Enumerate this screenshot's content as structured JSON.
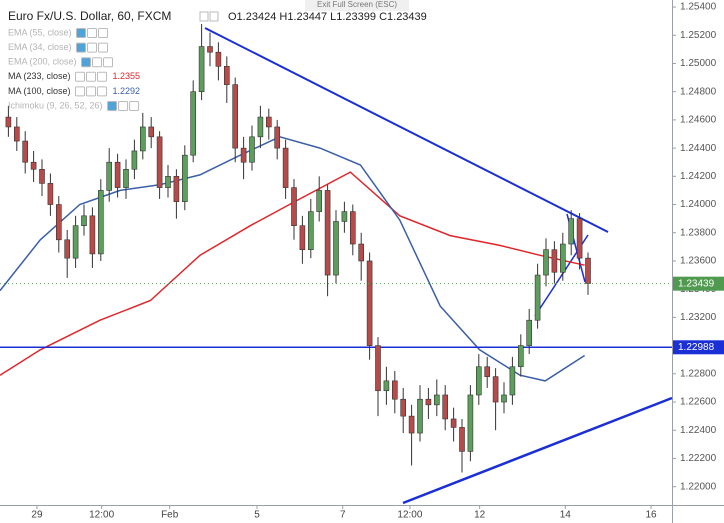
{
  "chart_data": {
    "type": "candlestick",
    "title": "Euro Fx/U.S. Dollar, 60, FXCM",
    "ohlc_text": "O1.23424 H1.23447 L1.23399 C1.23439",
    "exit_label": "Exit Full Screen (ESC)",
    "hidden_indicators": [
      "EMA (55, close)",
      "EMA (34, close)",
      "EMA (200, close)",
      "Ichimoku (9, 26, 52, 26)"
    ],
    "up_color": "#5d9e5d",
    "down_color": "#b84a4a",
    "x": [
      1,
      2,
      3,
      4,
      5,
      6,
      7,
      8,
      9,
      10,
      11,
      12,
      13,
      14,
      15,
      16,
      17,
      18,
      19,
      20,
      21,
      22,
      23,
      24,
      25,
      26,
      27,
      28,
      29,
      30,
      31,
      32,
      33,
      34,
      35,
      36,
      37,
      38,
      39,
      40,
      41,
      42,
      43,
      44,
      45,
      46,
      47,
      48,
      49,
      50,
      51,
      52,
      53,
      54,
      55,
      56,
      57,
      58,
      59,
      60,
      61,
      62,
      63,
      64,
      65,
      66,
      67,
      68,
      69,
      70
    ],
    "open": [
      1.2462,
      1.2455,
      1.2445,
      1.243,
      1.2425,
      1.2415,
      1.24,
      1.2375,
      1.2362,
      1.2385,
      1.2392,
      1.2365,
      1.241,
      1.243,
      1.2412,
      1.2425,
      1.2438,
      1.2455,
      1.2448,
      1.2412,
      1.242,
      1.2402,
      1.2435,
      1.248,
      1.2512,
      1.2508,
      1.2498,
      1.2485,
      1.244,
      1.243,
      1.2448,
      1.2462,
      1.2455,
      1.244,
      1.2412,
      1.2385,
      1.2368,
      1.2395,
      1.241,
      1.235,
      1.2388,
      1.2395,
      1.2372,
      1.236,
      1.23,
      1.2268,
      1.2275,
      1.2262,
      1.225,
      1.2238,
      1.2262,
      1.2258,
      1.2265,
      1.2248,
      1.2242,
      1.2225,
      1.2265,
      1.2285,
      1.2278,
      1.226,
      1.2265,
      1.2285,
      1.23,
      1.2318,
      1.235,
      1.2368,
      1.2352,
      1.2372,
      1.239,
      1.2362
    ],
    "high": [
      1.247,
      1.2462,
      1.2452,
      1.2438,
      1.2432,
      1.2422,
      1.2406,
      1.2382,
      1.2392,
      1.24,
      1.2398,
      1.2418,
      1.244,
      1.2436,
      1.2432,
      1.2446,
      1.2465,
      1.2462,
      1.2452,
      1.2428,
      1.2425,
      1.2442,
      1.2488,
      1.2528,
      1.2522,
      1.2515,
      1.2505,
      1.249,
      1.2448,
      1.2456,
      1.247,
      1.2468,
      1.246,
      1.2446,
      1.2418,
      1.2392,
      1.2404,
      1.242,
      1.2414,
      1.2396,
      1.2402,
      1.24,
      1.238,
      1.2366,
      1.2306,
      1.2285,
      1.2282,
      1.227,
      1.2258,
      1.2272,
      1.227,
      1.2276,
      1.2272,
      1.2256,
      1.2248,
      1.2272,
      1.2294,
      1.2292,
      1.2284,
      1.2274,
      1.2292,
      1.2308,
      1.2326,
      1.2358,
      1.2376,
      1.2374,
      1.238,
      1.2396,
      1.2394,
      1.2366
    ],
    "low": [
      1.2448,
      1.2438,
      1.2422,
      1.2416,
      1.2406,
      1.2392,
      1.2366,
      1.2348,
      1.2355,
      1.2378,
      1.2355,
      1.236,
      1.2402,
      1.2405,
      1.2404,
      1.2418,
      1.2432,
      1.244,
      1.2404,
      1.2405,
      1.239,
      1.2396,
      1.243,
      1.2474,
      1.2498,
      1.2488,
      1.2472,
      1.243,
      1.2418,
      1.2424,
      1.244,
      1.2446,
      1.2432,
      1.2404,
      1.2375,
      1.2358,
      1.2362,
      1.2388,
      1.2335,
      1.2344,
      1.238,
      1.2364,
      1.2346,
      1.229,
      1.225,
      1.2258,
      1.2252,
      1.2238,
      1.2215,
      1.2232,
      1.2248,
      1.225,
      1.224,
      1.2232,
      1.221,
      1.2218,
      1.2258,
      1.227,
      1.224,
      1.2252,
      1.2258,
      1.2278,
      1.2294,
      1.2312,
      1.2342,
      1.2344,
      1.2346,
      1.2364,
      1.2354,
      1.2336
    ],
    "close": [
      1.2455,
      1.2445,
      1.243,
      1.2425,
      1.2415,
      1.24,
      1.2375,
      1.2362,
      1.2385,
      1.2392,
      1.2365,
      1.241,
      1.243,
      1.2412,
      1.2425,
      1.2438,
      1.2455,
      1.2448,
      1.2412,
      1.242,
      1.2402,
      1.2435,
      1.248,
      1.2512,
      1.2508,
      1.2498,
      1.2485,
      1.244,
      1.243,
      1.2448,
      1.2462,
      1.2455,
      1.244,
      1.2412,
      1.2385,
      1.2368,
      1.2395,
      1.241,
      1.235,
      1.2388,
      1.2395,
      1.2372,
      1.236,
      1.23,
      1.2268,
      1.2275,
      1.2262,
      1.225,
      1.2238,
      1.2262,
      1.2258,
      1.2265,
      1.2248,
      1.2242,
      1.2225,
      1.2265,
      1.2285,
      1.2278,
      1.226,
      1.2265,
      1.2285,
      1.23,
      1.2318,
      1.235,
      1.2368,
      1.2352,
      1.2372,
      1.239,
      1.2362,
      1.2344
    ],
    "lines": [
      {
        "name": "MA (233, close)",
        "legend_value": "1.2355",
        "color": "#e0262a",
        "x": [
          0,
          4.8,
          11.9,
          17.9,
          23.8,
          29.8,
          35.7,
          41.7,
          47.6,
          53.6,
          59.5,
          64.3,
          69.6
        ],
        "values": [
          1.2279,
          1.2297,
          1.2318,
          1.2332,
          1.2364,
          1.2385,
          1.2404,
          1.2423,
          1.2392,
          1.2378,
          1.2371,
          1.2364,
          1.2357
        ]
      },
      {
        "name": "MA (100, close)",
        "legend_value": "1.2292",
        "color": "#3a5fa8",
        "x": [
          0,
          4.8,
          9.5,
          14.3,
          19,
          23.8,
          28.6,
          33.3,
          38.1,
          42.9,
          47.6,
          52.4,
          57.1,
          61.9,
          64.9,
          69.6
        ],
        "values": [
          1.2339,
          1.2375,
          1.24,
          1.241,
          1.2414,
          1.2421,
          1.2435,
          1.2448,
          1.244,
          1.2428,
          1.2389,
          1.2328,
          1.2297,
          1.2279,
          1.2275,
          1.2293
        ]
      }
    ],
    "hline": {
      "value": 1.22988,
      "color": "#1a2fd6"
    },
    "last_price": 1.23439,
    "xlim": [
      0,
      80
    ],
    "xticks": [
      {
        "value": 4.4,
        "label": "29"
      },
      {
        "value": 12.1,
        "label": "12:00"
      },
      {
        "value": 20.2,
        "label": "Feb"
      },
      {
        "value": 30.6,
        "label": "5"
      },
      {
        "value": 40.8,
        "label": "7"
      },
      {
        "value": 48.8,
        "label": "12:00"
      },
      {
        "value": 57.1,
        "label": "12"
      },
      {
        "value": 67.3,
        "label": "14"
      },
      {
        "value": 77.5,
        "label": "16"
      }
    ],
    "ylim": [
      1.2187,
      1.2545
    ],
    "yticks": [
      {
        "value": 1.22,
        "label": "1.22000"
      },
      {
        "value": 1.222,
        "label": "1.22200"
      },
      {
        "value": 1.224,
        "label": "1.22400"
      },
      {
        "value": 1.226,
        "label": "1.22600"
      },
      {
        "value": 1.228,
        "label": "1.22800"
      },
      {
        "value": 1.23,
        "label": "1.23000"
      },
      {
        "value": 1.232,
        "label": "1.23200"
      },
      {
        "value": 1.234,
        "label": "1.23400"
      },
      {
        "value": 1.236,
        "label": "1.23600"
      },
      {
        "value": 1.238,
        "label": "1.23800"
      },
      {
        "value": 1.24,
        "label": "1.24000"
      },
      {
        "value": 1.242,
        "label": "1.24200"
      },
      {
        "value": 1.244,
        "label": "1.24400"
      },
      {
        "value": 1.246,
        "label": "1.24600"
      },
      {
        "value": 1.248,
        "label": "1.24800"
      },
      {
        "value": 1.25,
        "label": "1.25000"
      },
      {
        "value": 1.252,
        "label": "1.25200"
      },
      {
        "value": 1.254,
        "label": "1.25400"
      }
    ],
    "grid": false
  }
}
